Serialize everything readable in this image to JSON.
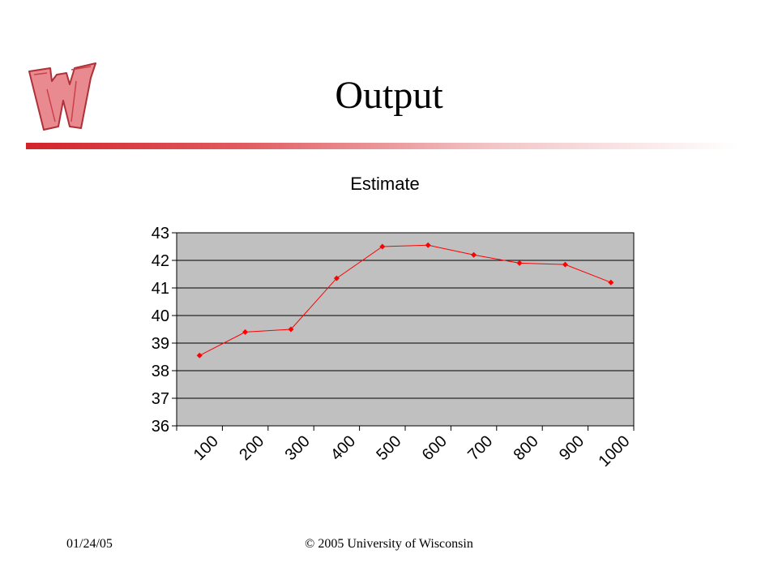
{
  "slide": {
    "title": "Output",
    "footer_date": "01/24/05",
    "footer_copyright": "© 2005 University of Wisconsin",
    "accent_color": "#d2232a",
    "logo_icon": "wisconsin-w-logo"
  },
  "chart_data": {
    "type": "line",
    "title": "Estimate",
    "xlabel": "",
    "ylabel": "",
    "categories": [
      "100",
      "200",
      "300",
      "400",
      "500",
      "600",
      "700",
      "800",
      "900",
      "1000"
    ],
    "series": [
      {
        "values": [
          38.55,
          39.4,
          39.5,
          41.35,
          42.5,
          42.55,
          42.2,
          41.9,
          41.85,
          41.2
        ]
      }
    ],
    "ylim": [
      36,
      43
    ],
    "yticks": [
      36,
      37,
      38,
      39,
      40,
      41,
      42,
      43
    ],
    "grid": true,
    "legend": "none",
    "plot_background": "#c0c0c0",
    "line_color": "#ff0000"
  }
}
